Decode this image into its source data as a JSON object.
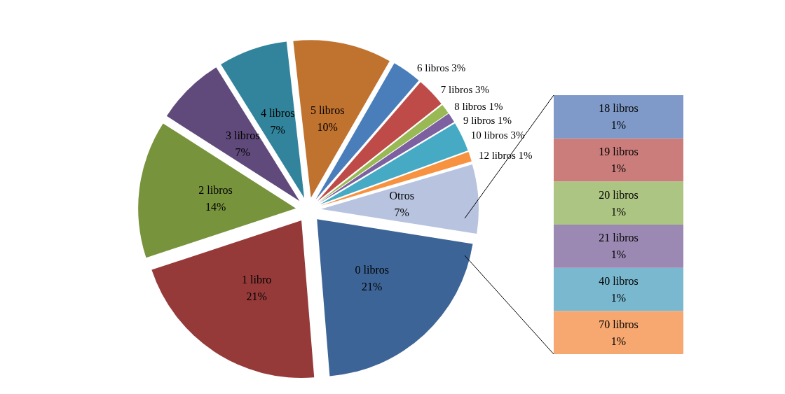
{
  "chart_data": [
    {
      "type": "pie",
      "categories": [
        "0 libros",
        "1 libro",
        "2 libros",
        "3 libros",
        "4 libros",
        "5 libros",
        "6 libros",
        "7 libros",
        "8 libros",
        "9 libros",
        "10 libros",
        "12 libros",
        "Otros"
      ],
      "values": [
        21,
        21,
        14,
        7,
        7,
        10,
        3,
        3,
        1,
        1,
        3,
        1,
        7
      ],
      "value_labels": [
        "21%",
        "21%",
        "14%",
        "7%",
        "7%",
        "10%",
        "3%",
        "3%",
        "1%",
        "1%",
        "3%",
        "1%",
        "7%"
      ],
      "colors": [
        "#3d6496",
        "#953a39",
        "#77933c",
        "#604a7b",
        "#31849b",
        "#c0722f",
        "#4a7ebb",
        "#be4b48",
        "#98b954",
        "#7d60a0",
        "#46aac5",
        "#f69240",
        "#b7c3df"
      ]
    },
    {
      "type": "bar",
      "stacked": true,
      "categories": [
        null
      ],
      "tick_labels": false,
      "series": [
        {
          "name": "70 libros",
          "color": "#f7a870",
          "values": [
            1
          ],
          "value_labels": [
            "1%"
          ]
        },
        {
          "name": "40 libros",
          "color": "#7ab8cf",
          "values": [
            1
          ],
          "value_labels": [
            "1%"
          ]
        },
        {
          "name": "21 libros",
          "color": "#9b89b3",
          "values": [
            1
          ],
          "value_labels": [
            "1%"
          ]
        },
        {
          "name": "20 libros",
          "color": "#adc583",
          "values": [
            1
          ],
          "value_labels": [
            "1%"
          ]
        },
        {
          "name": "19 libros",
          "color": "#ca7d7b",
          "values": [
            1
          ],
          "value_labels": [
            "1%"
          ]
        },
        {
          "name": "18 libros",
          "color": "#7f9ac8",
          "values": [
            1
          ],
          "value_labels": [
            "1%"
          ]
        }
      ]
    }
  ]
}
